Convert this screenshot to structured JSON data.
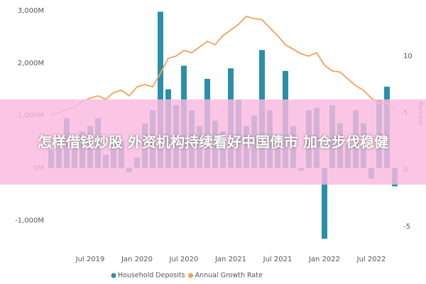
{
  "chart_data": {
    "type": "bar-line",
    "categories": [
      null,
      null,
      null,
      null,
      null,
      "Jul 2019",
      null,
      null,
      null,
      null,
      null,
      "Jan 2020",
      null,
      null,
      null,
      null,
      null,
      "Jul 2020",
      null,
      null,
      null,
      null,
      null,
      "Jan 2021",
      null,
      null,
      null,
      null,
      null,
      "Jul 2021",
      null,
      null,
      null,
      null,
      null,
      "Jan 2022",
      null,
      null,
      null,
      null,
      null,
      "Jul 2022",
      null,
      null,
      null
    ],
    "series": [
      {
        "name": "Household Deposits",
        "color": "#2a8fa8",
        "values": [
          350,
          400,
          950,
          450,
          700,
          800,
          950,
          250,
          600,
          500,
          -80,
          200,
          850,
          1100,
          2980,
          1500,
          1200,
          1950,
          1100,
          800,
          1700,
          900,
          700,
          1900,
          1300,
          800,
          1000,
          2250,
          1100,
          450,
          1850,
          800,
          -50,
          1100,
          1150,
          -1350,
          1200,
          850,
          450,
          1100,
          850,
          -200,
          1300,
          1550,
          -350
        ]
      },
      {
        "name": "Annual Growth Rate",
        "color": "#f5a05a",
        "axis": "y2",
        "values": [
          4.8,
          5,
          5.3,
          5.5,
          6,
          6.3,
          6.5,
          6.2,
          6.8,
          7,
          6.5,
          7.3,
          7.5,
          7.3,
          8.5,
          9.8,
          10,
          10.5,
          10.3,
          10.8,
          11.3,
          11,
          11.8,
          12.3,
          12.8,
          13.5,
          13.3,
          13.2,
          12.5,
          11.8,
          11,
          10.6,
          10.2,
          10,
          10.3,
          9.2,
          8.7,
          8.6,
          8,
          7.4,
          7,
          6.3,
          5.8,
          5.9,
          5.4
        ]
      }
    ],
    "ylim": [
      -1400,
      3000
    ],
    "yticks": [
      {
        "value": -1000,
        "label": "-1,000M"
      },
      {
        "value": 0,
        "label": "0M"
      },
      {
        "value": 1000,
        "label": "1,000M"
      },
      {
        "value": 2000,
        "label": "2,000M"
      },
      {
        "value": 3000,
        "label": "3,000M"
      }
    ],
    "y2label": "Percent",
    "y2lim": [
      -6.3,
      14
    ],
    "y2ticks": [
      -5,
      0,
      5,
      10
    ],
    "grid": false,
    "legend": "bottom"
  },
  "banner": {
    "text": "怎样借钱炒股 外资机构持续看好中国债市 加仓步伐稳健"
  }
}
